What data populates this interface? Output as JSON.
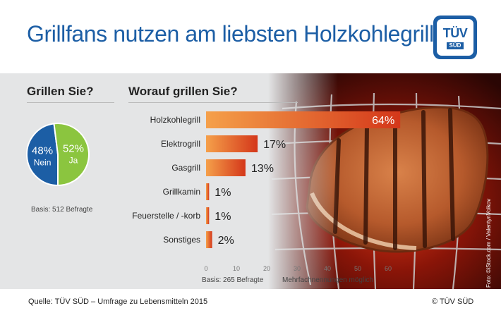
{
  "title": "Grillfans nutzen am liebsten Holzkohlegrills",
  "logo": {
    "line1": "TÜV",
    "line2": "SÜD"
  },
  "left": {
    "question": "Grillen Sie?",
    "basis": "Basis: 512 Befragte"
  },
  "bars": {
    "question": "Worauf grillen Sie?",
    "basis": "Basis: 265 Befragte",
    "note": "Mehrfachnennungen möglich"
  },
  "photo_credit": "Foto: ©iStock.com / ValentynVolkov",
  "footer": {
    "source": "Quelle: TÜV SÜD – Umfrage zu Lebensmitteln 2015",
    "copyright": "© TÜV SÜD"
  },
  "colors": {
    "blue": "#1c5ea5",
    "green": "#8bc53f",
    "bar_light": "#f5a04a",
    "bar_dark": "#d4371a"
  },
  "chart_data": [
    {
      "type": "pie",
      "title": "Grillen Sie?",
      "slices": [
        {
          "label": "Nein",
          "value": 48,
          "display": "48%",
          "color": "#1c5ea5"
        },
        {
          "label": "Ja",
          "value": 52,
          "display": "52%",
          "color": "#8bc53f"
        }
      ]
    },
    {
      "type": "bar",
      "orientation": "horizontal",
      "title": "Worauf grillen Sie?",
      "categories": [
        "Holzkohlegrill",
        "Elektrogrill",
        "Gasgrill",
        "Grillkamin",
        "Feuerstelle / -korb",
        "Sonstiges"
      ],
      "values": [
        64,
        17,
        13,
        1,
        1,
        2
      ],
      "value_labels": [
        "64%",
        "17%",
        "13%",
        "1%",
        "1%",
        "2%"
      ],
      "xticks": [
        0,
        10,
        20,
        30,
        40,
        50,
        60
      ],
      "xlim": [
        0,
        64
      ],
      "grid": false
    }
  ]
}
